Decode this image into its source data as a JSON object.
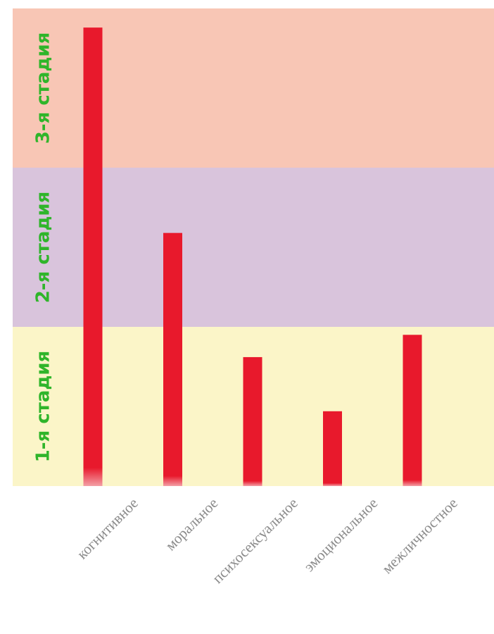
{
  "chart_data": {
    "type": "bar",
    "title": "",
    "xlabel": "",
    "ylabel": "",
    "categories": [
      "когнитивное",
      "моральное",
      "психосексуальное",
      "эмоциональное",
      "межличностное"
    ],
    "values": [
      2.88,
      1.59,
      0.81,
      0.47,
      0.95
    ],
    "ylim": [
      0,
      3
    ],
    "grid": false,
    "legend": "none",
    "bar_color": "#e8192c",
    "bands": [
      {
        "label": "1-я стадия",
        "from": 0,
        "to": 1,
        "color": "#fbf5c8"
      },
      {
        "label": "2-я стадия",
        "from": 1,
        "to": 2,
        "color": "#d9c4dc"
      },
      {
        "label": "3-я стадия",
        "from": 2,
        "to": 3,
        "color": "#f8c6b5"
      }
    ],
    "band_label_color": "#2fb52a"
  }
}
